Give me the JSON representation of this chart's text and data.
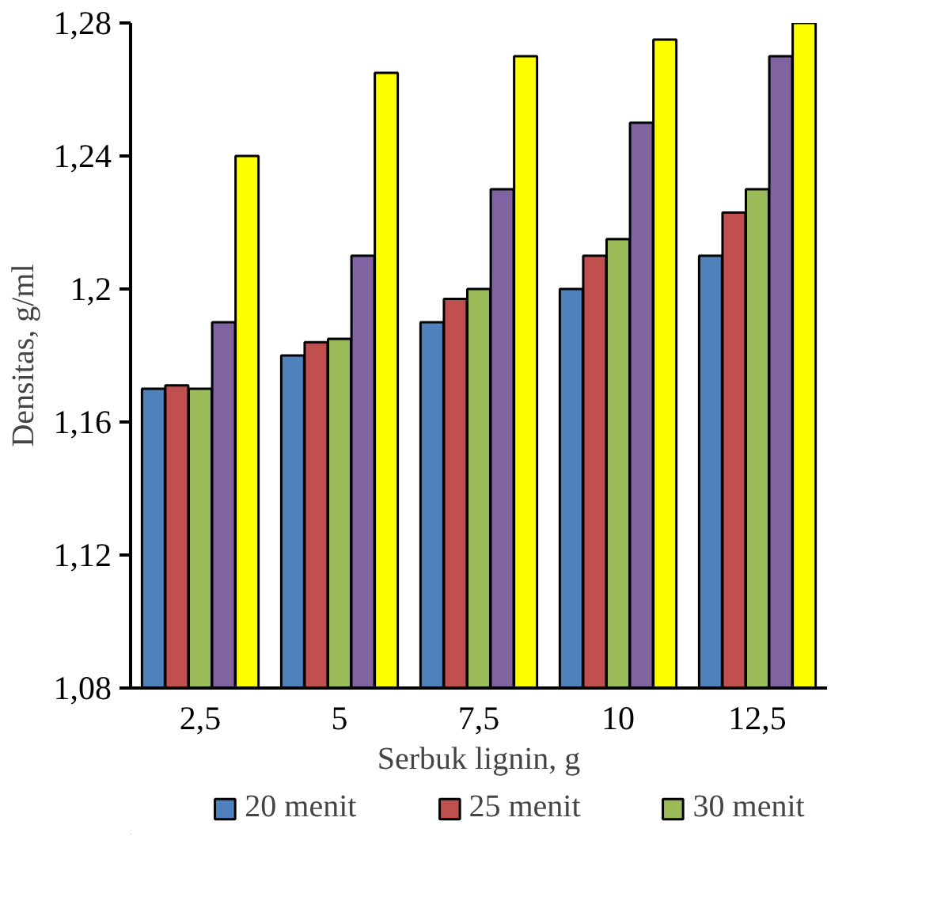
{
  "chart_data": {
    "type": "bar",
    "xlabel": "Serbuk lignin, g",
    "ylabel": "Densitas, g/ml",
    "categories": [
      "2,5",
      "5",
      "7,5",
      "10",
      "12,5"
    ],
    "series": [
      {
        "name": "20 menit",
        "color": "#4f81bd",
        "values": [
          1.17,
          1.18,
          1.19,
          1.2,
          1.21
        ]
      },
      {
        "name": "25 menit",
        "color": "#c0504d",
        "values": [
          1.171,
          1.184,
          1.197,
          1.21,
          1.223
        ]
      },
      {
        "name": "30 menit",
        "color": "#9bbb59",
        "values": [
          1.17,
          1.185,
          1.2,
          1.215,
          1.23
        ]
      },
      {
        "color": "#8064a2",
        "values": [
          1.19,
          1.21,
          1.23,
          1.25,
          1.27
        ]
      },
      {
        "color": "#ffff00",
        "values": [
          1.24,
          1.265,
          1.27,
          1.275,
          1.28
        ]
      }
    ],
    "ylim": [
      1.08,
      1.28
    ],
    "yticks": [
      {
        "value": 1.08,
        "label": "1,08"
      },
      {
        "value": 1.12,
        "label": "1,12"
      },
      {
        "value": 1.16,
        "label": "1,16"
      },
      {
        "value": 1.2,
        "label": "1,2"
      },
      {
        "value": 1.24,
        "label": "1,24"
      },
      {
        "value": 1.28,
        "label": "1,28"
      }
    ],
    "grid": false,
    "legend": "bottom"
  }
}
